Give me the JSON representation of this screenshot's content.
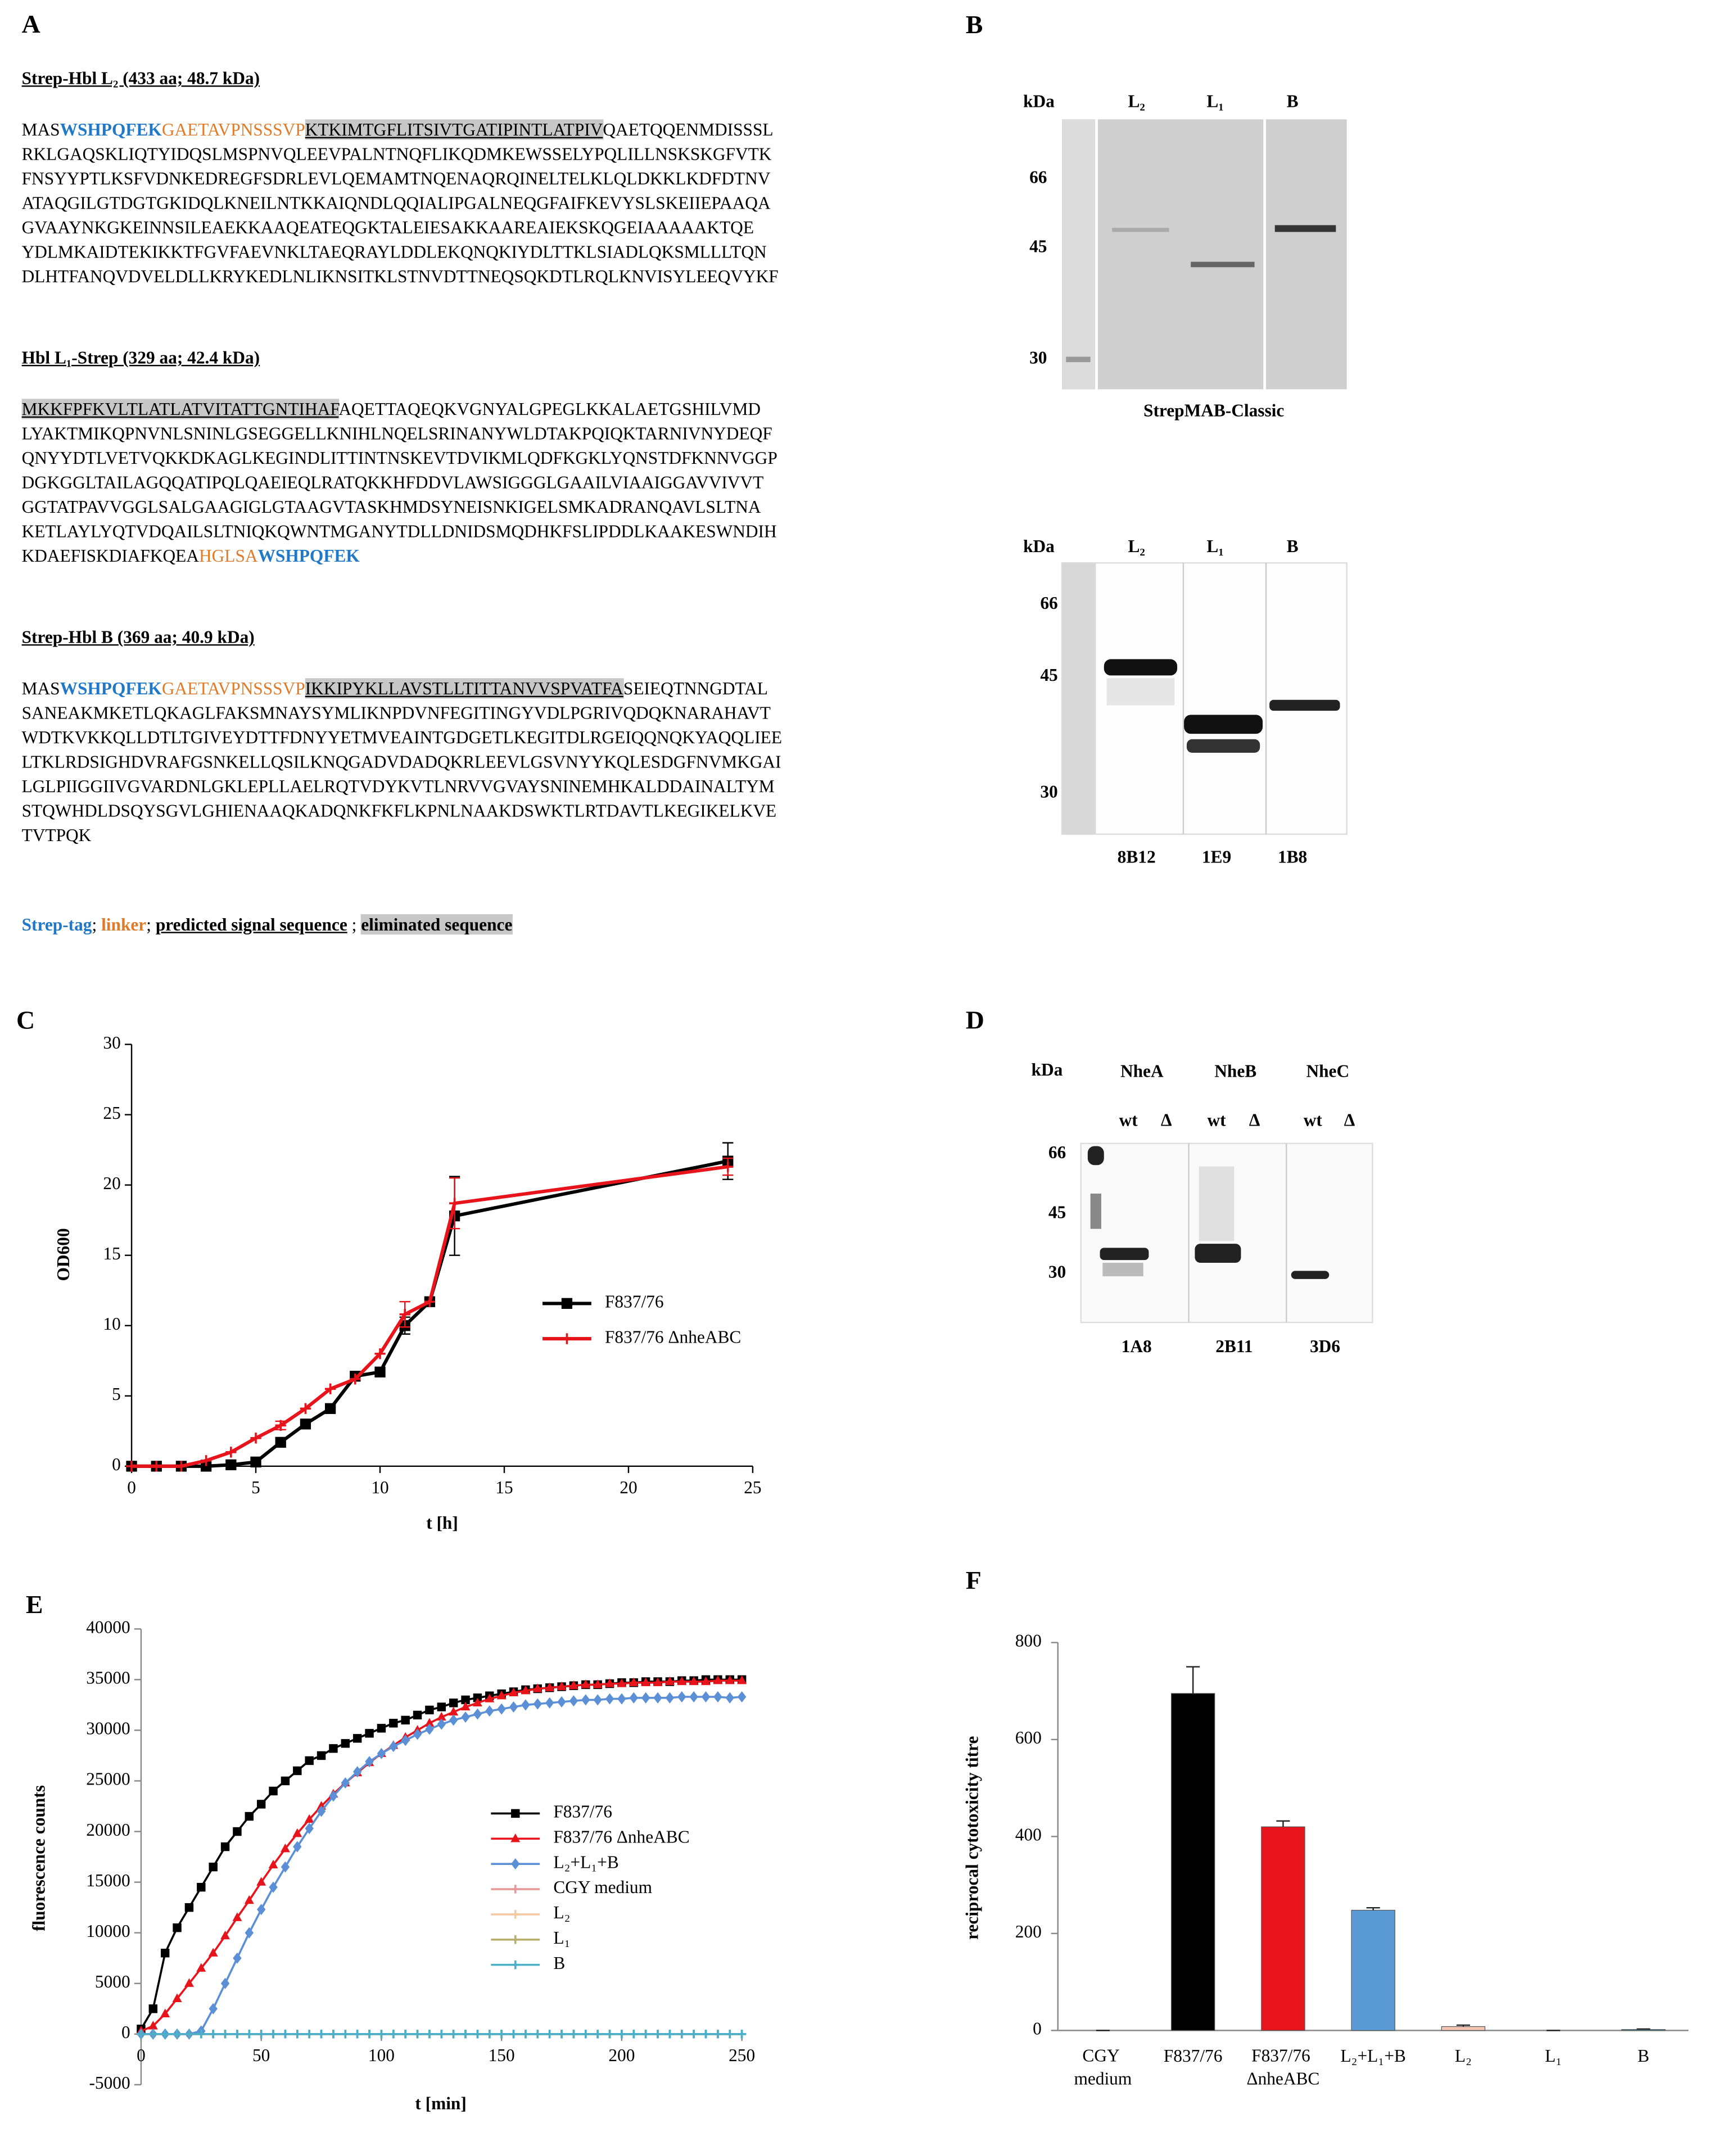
{
  "panels": {
    "A": {
      "label": "A",
      "proteins": [
        {
          "title": "Strep-Hbl L₂ (433 aa; 48.7 kDa)",
          "lines": [
            [
              {
                "text": "MAS"
              },
              {
                "text": "WSHPQFEK",
                "color": "#1f78c8",
                "bold": true
              },
              {
                "text": "GAETAVPNSSSVP",
                "color": "#e07b2a"
              },
              {
                "text": "KTKIMTGFLITSIVTGATIPINTLATPIV",
                "highlight": true,
                "underline": true
              },
              {
                "text": "QAETQQENMDISSSL"
              }
            ],
            "RKLGAQSKLIQTYIDQSLMSPNVQLEEVPALNTNQFLIKQDMKEWSSELYPQLILLNSKSKGFVTK",
            "FNSYYPTLKSFVDNKEDREGFSDRLEVLQEMAMTNQENAQRQINELTELKLQLDKKLKDFDTNV",
            "ATAQGILGTDGTGKIDQLKNEILNTKKAIQNDLQQIALIPGALNEQGFAIFKEVYSLSKEIIEPAAQA",
            "GVAAYNKGKEINNSILEAEKKAAQEATEQGKTALEIESAKKAAREAIEKSKQGEIAAAAAKTQE",
            "YDLMKAIDTEKIKKTFGVFAEVNKLTAEQRAYLDDLEKQNQKIYDLTTKLSIADLQKSMLLLTQN",
            "DLHTFANQVDVELDLLKRYKEDLNLIKNSITKLSTNVDTTNEQSQKDTLRQLKNVISYLEEQVYKF"
          ]
        },
        {
          "title": "Hbl L₁-Strep (329 aa; 42.4 kDa)",
          "lines": [
            [
              {
                "text": "MKKFPFKVLTLATLATVITATTGNTIHAF",
                "highlight": true,
                "underline": true
              },
              {
                "text": "AQETTAQEQKVGNYALGPEGLKKALAETGSHILVMD"
              }
            ],
            "LYAKTMIKQPNVNLSNINLGSEGGELLKNIHLNQELSRINANYWLDTAKPQIQKTARNIVNYDEQF",
            "QNYYDTLVETVQKKDKAGLKEGINDLITTINTNSKEVTDVIKMLQDFKGKLYQNSTDFKNNVGGP",
            "DGKGGLTAILAGQQATIPQLQAEIEQLRATQKKHFDDVLAWSIGGGLGAAILVIAAIGGAVVIVVT",
            "GGTATPAVVGGLSALGAAGIGLGTAAGVTASKHMDSYNEISNKIGELSMKADRANQAVLSLTNA",
            "KETLAYLYQTVDQAILSLTNIQKQWNTMGANYTDLLDNIDSMQDHKFSLIPDDLKAAKESWNDIH",
            [
              {
                "text": "KDAEFISKDIAFKQEA"
              },
              {
                "text": "HGLSA",
                "color": "#e07b2a"
              },
              {
                "text": "WSHPQFEK",
                "color": "#1f78c8",
                "bold": true
              }
            ]
          ]
        },
        {
          "title": "Strep-Hbl B (369 aa; 40.9 kDa)",
          "lines": [
            [
              {
                "text": "MAS"
              },
              {
                "text": "WSHPQFEK",
                "color": "#1f78c8",
                "bold": true
              },
              {
                "text": "GAETAVPNSSSVP",
                "color": "#e07b2a"
              },
              {
                "text": "IKKIPYKLLAVSTLLTITTANVVSPVATFA",
                "highlight": true,
                "underline": true
              },
              {
                "text": "SEIEQTNNGDTAL"
              }
            ],
            "SANEAKMKETLQKAGLFAKSMNAYSYMLIKNPDVNFEGITINGYVDLPGRIVQDQKNARAHAVT",
            "WDTKVKKQLLDTLTGIVEYDTTFDNYYETMVEAINTGDGETLKEGITDLRGEIQQNQKYAQQLIEE",
            "LTKLRDSIGHDVRAFGSNKELLQSILKNQGADVDADQKRLEEVLGSVNYYKQLESDGFNVMKGAI",
            "LGLPIIGGIIVGVARDNLGKLEPLLAELRQTVDYKVTLNRVVGVAYSNINEMHKALDDAINALTYM",
            "STQWHDLDSQYSGVLGHIENAAQKADQNKFKFLKPNLNAAKDSWKTLRTDAVTLKEGIKELKVE",
            "TVTPQK"
          ]
        }
      ],
      "legend": [
        {
          "text": "Strep-tag",
          "color": "#1f78c8",
          "bold": true
        },
        {
          "text": "; "
        },
        {
          "text": "linker",
          "color": "#e07b2a",
          "bold": true
        },
        {
          "text": "; "
        },
        {
          "text": "predicted signal sequence",
          "underline": true,
          "bold": true
        },
        {
          "text": " ; "
        },
        {
          "text": "eliminated sequence",
          "highlight": true,
          "bold": true
        }
      ]
    },
    "B": {
      "label": "B",
      "blots": [
        {
          "kda": "kDa",
          "lanes": [
            "L₂",
            "L₁",
            "B"
          ],
          "markers": [
            "66",
            "45",
            "30"
          ],
          "caption": "StrepMAB-Classic"
        },
        {
          "kda": "kDa",
          "lanes": [
            "L₂",
            "L₁",
            "B"
          ],
          "markers": [
            "66",
            "45",
            "30"
          ],
          "antibodies": [
            "8B12",
            "1E9",
            "1B8"
          ]
        }
      ]
    },
    "D": {
      "label": "D",
      "kda": "kDa",
      "lanes": [
        "NheA",
        "NheB",
        "NheC"
      ],
      "sublanes": [
        "wt",
        "Δ",
        "wt",
        "Δ",
        "wt",
        "Δ"
      ],
      "markers": [
        "66",
        "45",
        "30"
      ],
      "antibodies": [
        "1A8",
        "2B11",
        "3D6"
      ]
    }
  },
  "chart_data": [
    {
      "type": "line",
      "label": "C",
      "xlabel": "t [h]",
      "ylabel": "OD600",
      "x": [
        0,
        1,
        2,
        3,
        4,
        5,
        6,
        7,
        8,
        9,
        10,
        11,
        12,
        13,
        24
      ],
      "xlim": [
        0,
        25
      ],
      "xticks": [
        0,
        5,
        10,
        15,
        20,
        25
      ],
      "ylim": [
        0,
        30
      ],
      "yticks": [
        0,
        5,
        10,
        15,
        20,
        25,
        30
      ],
      "series": [
        {
          "name": "F837/76",
          "color": "#000000",
          "marker": "square",
          "values": [
            0,
            0,
            0,
            0,
            0.1,
            0.3,
            1.7,
            3,
            4.1,
            6.4,
            6.7,
            10,
            11.7,
            17.8,
            21.7
          ],
          "errors": [
            null,
            null,
            null,
            null,
            null,
            null,
            0.3,
            null,
            null,
            null,
            null,
            0.6,
            null,
            2.8,
            1.3
          ]
        },
        {
          "name": "F837/76 ΔnheABC",
          "color": "#e8141c",
          "marker": "plus",
          "values": [
            0,
            0,
            0,
            0.4,
            1,
            2,
            2.9,
            4.1,
            5.5,
            6.2,
            8,
            10.8,
            11.7,
            18.7,
            21.3
          ],
          "errors": [
            null,
            null,
            null,
            null,
            null,
            null,
            0.3,
            null,
            null,
            null,
            null,
            0.9,
            null,
            1.8,
            0.6
          ]
        }
      ]
    },
    {
      "type": "line",
      "label": "E",
      "xlabel": "t [min]",
      "ylabel": "fluorescence counts",
      "x": [
        0,
        5,
        10,
        15,
        20,
        25,
        30,
        35,
        40,
        45,
        50,
        55,
        60,
        65,
        70,
        75,
        80,
        85,
        90,
        95,
        100,
        105,
        110,
        115,
        120,
        125,
        130,
        135,
        140,
        145,
        150,
        155,
        160,
        165,
        170,
        175,
        180,
        185,
        190,
        195,
        200,
        205,
        210,
        215,
        220,
        225,
        230,
        235,
        240,
        245,
        250
      ],
      "xlim": [
        0,
        250
      ],
      "xticks": [
        0,
        50,
        100,
        150,
        200,
        250
      ],
      "ylim": [
        -5000,
        40000
      ],
      "yticks": [
        -5000,
        0,
        5000,
        10000,
        15000,
        20000,
        25000,
        30000,
        35000,
        40000
      ],
      "series": [
        {
          "name": "F837/76",
          "color": "#000000",
          "marker": "square",
          "values": [
            500,
            2500,
            8000,
            10500,
            12500,
            14500,
            16500,
            18500,
            20000,
            21500,
            22700,
            24000,
            25000,
            26000,
            27000,
            27500,
            28200,
            28700,
            29200,
            29700,
            30200,
            30700,
            31000,
            31500,
            32000,
            32300,
            32700,
            33000,
            33200,
            33400,
            33600,
            33800,
            34000,
            34100,
            34200,
            34300,
            34400,
            34500,
            34500,
            34600,
            34700,
            34700,
            34800,
            34800,
            34800,
            34900,
            34900,
            35000,
            35000,
            35000,
            35000
          ]
        },
        {
          "name": "F837/76 ΔnheABC",
          "color": "#e8141c",
          "marker": "triangle",
          "values": [
            300,
            800,
            2000,
            3500,
            5000,
            6500,
            8000,
            9700,
            11500,
            13200,
            15000,
            16700,
            18300,
            19800,
            21200,
            22500,
            23700,
            24800,
            25800,
            26800,
            27700,
            28500,
            29300,
            30000,
            30700,
            31300,
            31800,
            32300,
            32700,
            33100,
            33400,
            33700,
            33900,
            34100,
            34200,
            34300,
            34400,
            34500,
            34500,
            34600,
            34600,
            34700,
            34700,
            34700,
            34800,
            34800,
            34800,
            34800,
            34900,
            34900,
            34900
          ]
        },
        {
          "name": "L₂+L₁+B",
          "color": "#5b8fd6",
          "marker": "diamond",
          "values": [
            0,
            0,
            0,
            0,
            0,
            300,
            2500,
            5000,
            7500,
            10000,
            12300,
            14500,
            16500,
            18500,
            20300,
            22000,
            23500,
            24800,
            25900,
            26900,
            27700,
            28400,
            29000,
            29600,
            30100,
            30600,
            31000,
            31300,
            31600,
            31900,
            32100,
            32300,
            32500,
            32600,
            32700,
            32800,
            32900,
            33000,
            33000,
            33100,
            33100,
            33200,
            33200,
            33200,
            33200,
            33300,
            33300,
            33300,
            33300,
            33200,
            33300
          ]
        },
        {
          "name": "CGY medium",
          "color": "#e79a9a",
          "marker": "plus",
          "values": [
            0,
            0,
            0,
            0,
            0,
            0,
            0,
            0,
            0,
            0,
            0,
            0,
            0,
            0,
            0,
            0,
            0,
            0,
            0,
            0,
            0,
            0,
            0,
            0,
            0,
            0,
            0,
            0,
            0,
            0,
            0,
            0,
            0,
            0,
            0,
            0,
            0,
            0,
            0,
            0,
            0,
            0,
            0,
            0,
            0,
            0,
            0,
            0,
            0,
            0,
            0
          ]
        },
        {
          "name": "L₂",
          "color": "#f5c9a0",
          "marker": "plus",
          "values": [
            0,
            0,
            0,
            0,
            0,
            0,
            0,
            0,
            0,
            0,
            0,
            0,
            0,
            0,
            0,
            0,
            0,
            0,
            0,
            0,
            0,
            0,
            0,
            0,
            0,
            0,
            0,
            0,
            0,
            0,
            0,
            0,
            0,
            0,
            0,
            0,
            0,
            0,
            0,
            0,
            0,
            0,
            0,
            0,
            0,
            0,
            0,
            0,
            0,
            0,
            0
          ]
        },
        {
          "name": "L₁",
          "color": "#b8b070",
          "marker": "plus",
          "values": [
            0,
            0,
            0,
            0,
            0,
            0,
            0,
            0,
            0,
            0,
            0,
            0,
            0,
            0,
            0,
            0,
            0,
            0,
            0,
            0,
            0,
            0,
            0,
            0,
            0,
            0,
            0,
            0,
            0,
            0,
            0,
            0,
            0,
            0,
            0,
            0,
            0,
            0,
            0,
            0,
            0,
            0,
            0,
            0,
            0,
            0,
            0,
            0,
            0,
            0,
            0
          ]
        },
        {
          "name": "B",
          "color": "#4aafc8",
          "marker": "plus",
          "values": [
            0,
            0,
            0,
            0,
            0,
            0,
            0,
            0,
            0,
            0,
            0,
            0,
            0,
            0,
            0,
            0,
            0,
            0,
            0,
            0,
            0,
            0,
            0,
            0,
            0,
            0,
            0,
            0,
            0,
            0,
            0,
            0,
            0,
            0,
            0,
            0,
            0,
            0,
            0,
            0,
            0,
            0,
            0,
            0,
            0,
            0,
            0,
            0,
            0,
            0,
            0
          ]
        }
      ]
    },
    {
      "type": "bar",
      "label": "F",
      "ylabel": "reciprocal cytotoxicity titre",
      "categories": [
        "CGY medium",
        "F837/76",
        "F837/76 ΔnheABC",
        "L₂+L₁+B",
        "L₂",
        "L₁",
        "B"
      ],
      "values": [
        0,
        695,
        420,
        248,
        8,
        0,
        2
      ],
      "errors": [
        0,
        55,
        12,
        5,
        3,
        0,
        1
      ],
      "colors": [
        "#000000",
        "#000000",
        "#e8141c",
        "#5b9bd5",
        "#f2c6b0",
        "#c9c48a",
        "#4aafc8"
      ],
      "ylim": [
        0,
        800
      ],
      "yticks": [
        0,
        200,
        400,
        600,
        800
      ]
    }
  ]
}
